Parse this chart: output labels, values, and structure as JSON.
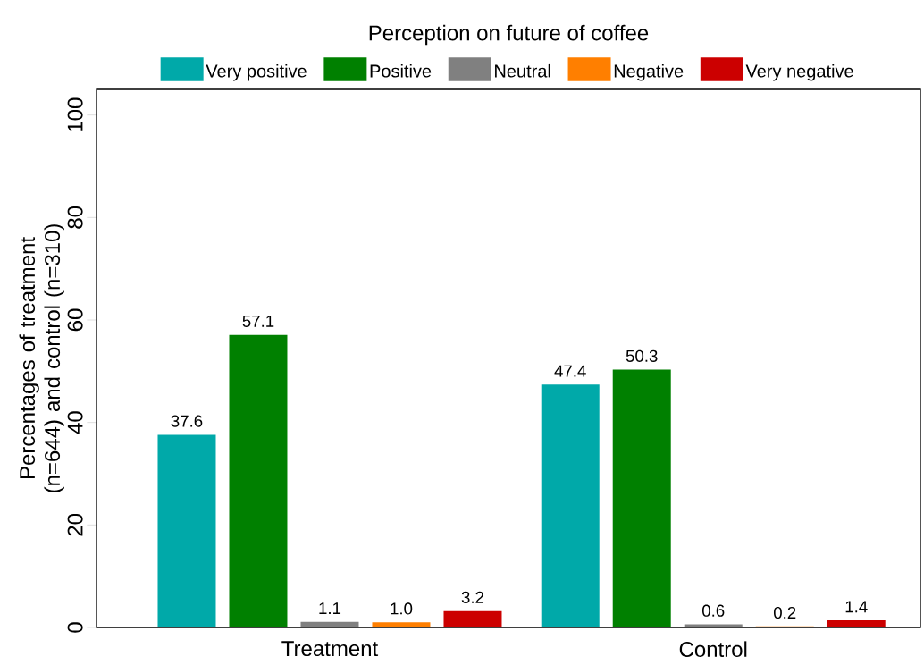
{
  "chart_data": {
    "type": "bar",
    "legend_title": "Perception on future of coffee",
    "ylabel": "Percentages of treatment (n=644) and control (n=310)",
    "categories": [
      "Treatment",
      "Control"
    ],
    "series": [
      {
        "name": "Very positive",
        "color": "#00a9a9",
        "values": [
          37.6,
          47.4
        ],
        "value_labels": [
          "37.6",
          "47.4"
        ]
      },
      {
        "name": "Positive",
        "color": "#008000",
        "values": [
          57.1,
          50.3
        ],
        "value_labels": [
          "57.1",
          "50.3"
        ]
      },
      {
        "name": "Neutral",
        "color": "#808080",
        "values": [
          1.1,
          0.6
        ],
        "value_labels": [
          "1.1",
          "0.6"
        ]
      },
      {
        "name": "Negative",
        "color": "#ff7f00",
        "values": [
          1.0,
          0.2
        ],
        "value_labels": [
          "1.0",
          "0.2"
        ]
      },
      {
        "name": "Very negative",
        "color": "#cc0000",
        "values": [
          3.2,
          1.4
        ],
        "value_labels": [
          "3.2",
          "1.4"
        ]
      }
    ],
    "ylim": [
      0,
      105
    ],
    "yticks": [
      0,
      20,
      40,
      60,
      80,
      100
    ],
    "grid": false,
    "legend": "top"
  }
}
